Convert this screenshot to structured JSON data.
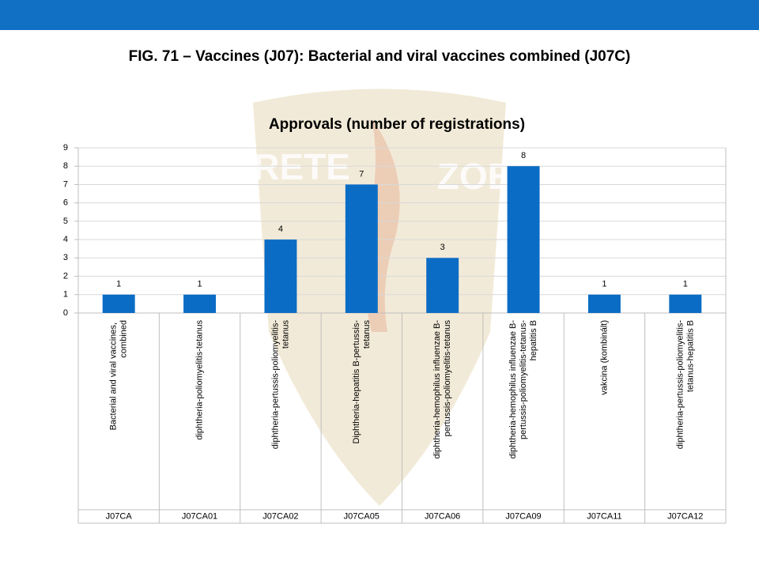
{
  "slide": {
    "title": "FIG. 71 – Vaccines (J07): Bacterial and viral vaccines combined (J07C)",
    "watermark": [
      "ARETE",
      "ZOE"
    ]
  },
  "chart_data": {
    "type": "bar",
    "title": "Approvals (number of registrations)",
    "categories": [
      "Bacterial and viral vaccines, combined",
      "diphtheria-poliomyelitis-tetanus",
      "diphtheria-pertussis-poliomyelitis-tetanus",
      "Diphtheria-hepatitis B-pertussis-tetanus",
      "diphtheria-hemophilus influenzae B-pertussis-poliomyelitis-tetanus",
      "diphtheria-hemophilus influenzae B-pertussis-poliomyelitis-tetanus-hepatitis B",
      "vakcina (kombinált)",
      "diphtheria-pertussis-poliomyelitis-tetanus-hepatitis B"
    ],
    "codes": [
      "J07CA",
      "J07CA01",
      "J07CA02",
      "J07CA05",
      "J07CA06",
      "J07CA09",
      "J07CA11",
      "J07CA12"
    ],
    "values": [
      1,
      1,
      4,
      7,
      3,
      8,
      1,
      1
    ],
    "color": "#0b6cc5",
    "ylim": [
      0,
      9
    ],
    "yticks": [
      0,
      1,
      2,
      3,
      4,
      5,
      6,
      7,
      8,
      9
    ],
    "grid": true
  }
}
